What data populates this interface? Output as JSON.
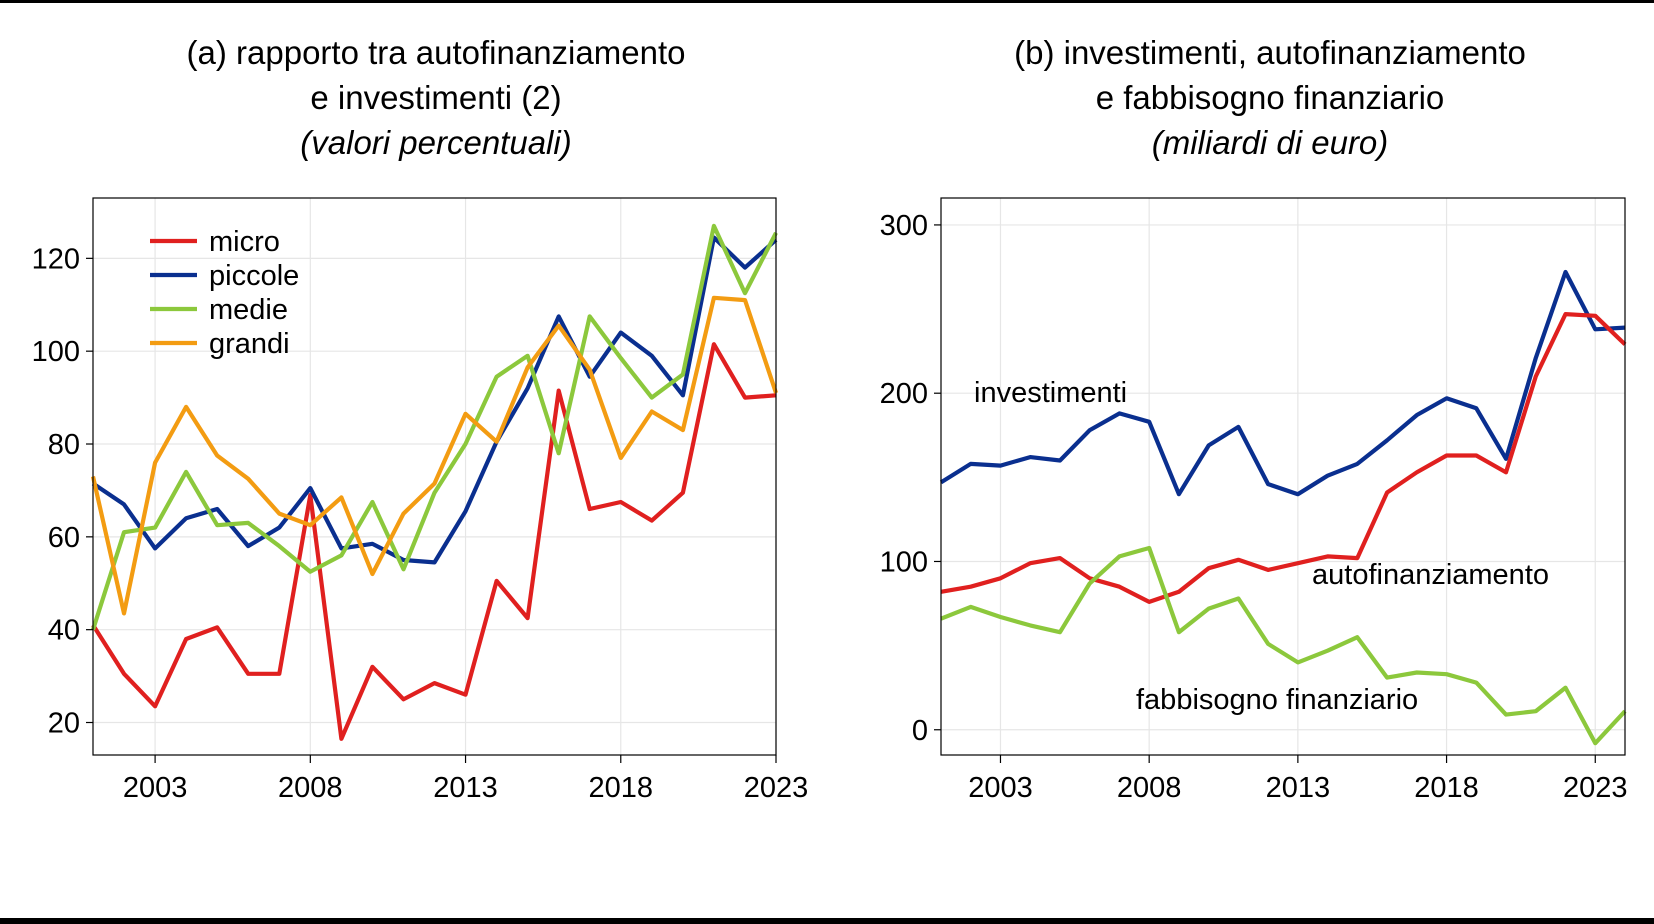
{
  "colors": {
    "micro": "#e0201f",
    "piccole": "#0a2f8f",
    "medie": "#8cc83c",
    "grandi": "#f39c12",
    "investimenti": "#0a2f8f",
    "autofinanziamento": "#e0201f",
    "fabbisogno": "#8cc83c"
  },
  "chart_data": [
    {
      "type": "line",
      "title_lines": [
        "(a) rapporto tra autofinanziamento",
        "e investimenti (2)"
      ],
      "subtitle": "(valori percentuali)",
      "x": [
        2001,
        2002,
        2003,
        2004,
        2005,
        2006,
        2007,
        2008,
        2009,
        2010,
        2011,
        2012,
        2013,
        2014,
        2015,
        2016,
        2017,
        2018,
        2019,
        2020,
        2021,
        2022,
        2023
      ],
      "xticks": [
        "2003",
        "2008",
        "2013",
        "2018",
        "2023"
      ],
      "xlim": [
        2001,
        2023
      ],
      "ylim": [
        13,
        133
      ],
      "yticks": [
        "20",
        "40",
        "60",
        "80",
        "100",
        "120"
      ],
      "grid": true,
      "legend_position": "top-left",
      "series": [
        {
          "key": "micro",
          "name": "micro",
          "values": [
            41,
            30.5,
            23.5,
            38,
            40.5,
            30.5,
            30.5,
            69,
            16.5,
            32,
            25,
            28.5,
            26,
            50.5,
            42.5,
            91.5,
            66,
            67.5,
            63.5,
            69.5,
            101.5,
            90,
            90.5
          ]
        },
        {
          "key": "piccole",
          "name": "piccole",
          "values": [
            71.5,
            67,
            57.5,
            64,
            66,
            58,
            62,
            70.5,
            57.5,
            58.5,
            55,
            54.5,
            65.5,
            80.5,
            92,
            107.5,
            94.5,
            104,
            99,
            90.5,
            124.5,
            118,
            124
          ]
        },
        {
          "key": "medie",
          "name": "medie",
          "values": [
            40,
            61,
            62,
            74,
            62.5,
            63,
            58,
            52.5,
            56,
            67.5,
            53,
            69.5,
            80,
            94.5,
            99,
            78,
            107.5,
            98.5,
            90,
            95,
            127,
            112.5,
            125.5
          ]
        },
        {
          "key": "grandi",
          "name": "grandi",
          "values": [
            73,
            43.5,
            76,
            88,
            77.5,
            72.5,
            65,
            62.5,
            68.5,
            52,
            65,
            71.5,
            86.5,
            80.5,
            96.5,
            105.5,
            96,
            77,
            87,
            83,
            111.5,
            111,
            91
          ]
        }
      ]
    },
    {
      "type": "line",
      "title_lines": [
        "(b) investimenti, autofinanziamento",
        "e fabbisogno finanziario"
      ],
      "subtitle": "(miliardi di euro)",
      "x": [
        2001,
        2002,
        2003,
        2004,
        2005,
        2006,
        2007,
        2008,
        2009,
        2010,
        2011,
        2012,
        2013,
        2014,
        2015,
        2016,
        2017,
        2018,
        2019,
        2020,
        2021,
        2022,
        2023,
        2024
      ],
      "xticks": [
        "2003",
        "2008",
        "2013",
        "2018",
        "2023"
      ],
      "xlim": [
        2001,
        2024
      ],
      "ylim": [
        -15,
        316
      ],
      "yticks": [
        "0",
        "100",
        "200",
        "300"
      ],
      "grid": true,
      "series": [
        {
          "key": "investimenti",
          "name": "investimenti",
          "values": [
            147,
            158,
            157,
            162,
            160,
            178,
            188,
            183,
            140,
            169,
            180,
            146,
            140,
            151,
            158,
            172,
            187,
            197,
            191,
            161,
            221,
            272,
            238,
            239
          ]
        },
        {
          "key": "autofinanziamento",
          "name": "autofinanziamento",
          "values": [
            82,
            85,
            90,
            99,
            102,
            90,
            85,
            76,
            82,
            96,
            101,
            95,
            99,
            103,
            102,
            141,
            153,
            163,
            163,
            153,
            210,
            247,
            246,
            229
          ]
        },
        {
          "key": "fabbisogno",
          "name": "fabbisogno finanziario",
          "values": [
            66,
            73,
            67,
            62,
            58,
            87,
            103,
            108,
            58,
            72,
            78,
            51,
            40,
            47,
            55,
            31,
            34,
            33,
            28,
            9,
            11,
            25,
            -8,
            11
          ]
        }
      ]
    }
  ]
}
